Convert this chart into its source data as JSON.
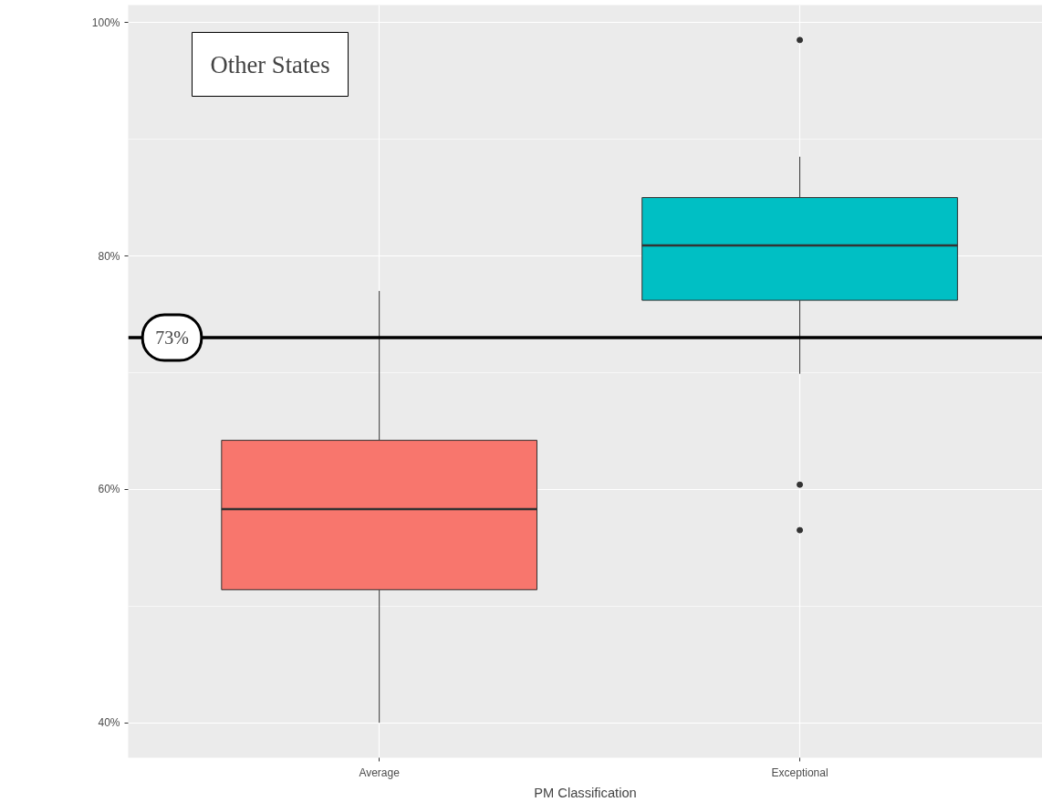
{
  "chart_data": {
    "type": "box",
    "xlabel": "PM Classification",
    "categories": [
      "Average",
      "Exceptional"
    ],
    "colors": [
      "#f8766d",
      "#00bfc4"
    ],
    "boxes": [
      {
        "low": 40,
        "q1": 51.4,
        "median": 58.3,
        "q3": 64.2,
        "high": 77.0
      },
      {
        "low": 69.9,
        "q1": 76.2,
        "median": 80.9,
        "q3": 85.0,
        "high": 88.5,
        "outliers": [
          98.5,
          60.4,
          56.5
        ]
      }
    ],
    "ylim": [
      37,
      101.5
    ],
    "yticks": [
      {
        "value": 40,
        "label": "40%"
      },
      {
        "value": 60,
        "label": "60%"
      },
      {
        "value": 80,
        "label": "80%"
      },
      {
        "value": 100,
        "label": "100%"
      }
    ],
    "ref_lines": [
      {
        "axis": "y",
        "value": 73,
        "label": "73%",
        "color": "#000000"
      }
    ],
    "annotations": [
      "Other States"
    ],
    "grid": true
  }
}
